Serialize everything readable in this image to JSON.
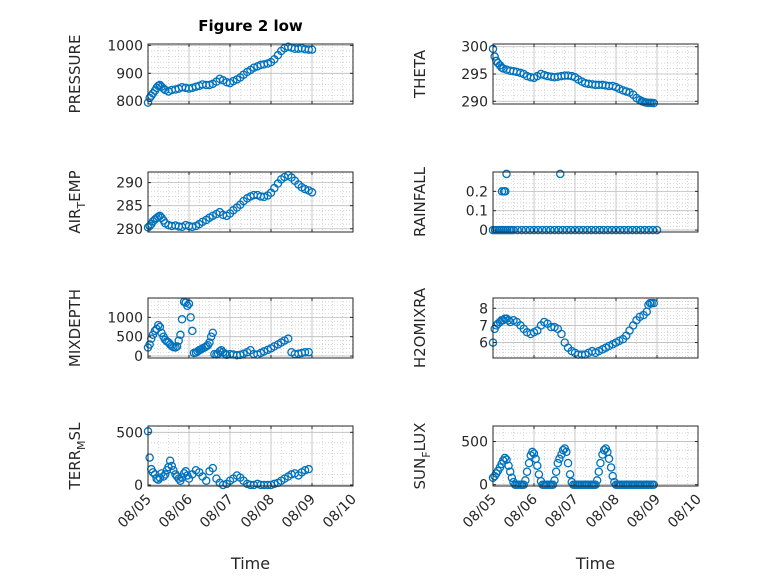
{
  "figure_title": "Figure 2 low",
  "colors": {
    "marker": "#0072BD",
    "axes": "#262626",
    "grid": "#bdbdbd",
    "background": "#ffffff"
  },
  "chart_data": [
    {
      "id": "pressure",
      "type": "scatter",
      "title": "Figure 2 low",
      "xlabel": "",
      "ylabel": "PRESSURE",
      "ylabel_sub": "",
      "ylabel_tail": "",
      "xlim": [
        0,
        5
      ],
      "ylim": [
        790,
        1005
      ],
      "xticks": [
        0,
        1,
        2,
        3,
        4,
        5
      ],
      "xtick_labels": [],
      "yticks": [
        800,
        900,
        1000
      ],
      "ytick_labels": [
        "800",
        "900",
        "1000"
      ],
      "grid": true,
      "x": [
        0.0,
        0.04,
        0.08,
        0.12,
        0.17,
        0.21,
        0.25,
        0.29,
        0.33,
        0.38,
        0.42,
        0.5,
        0.58,
        0.67,
        0.75,
        0.83,
        0.92,
        1.0,
        1.08,
        1.17,
        1.25,
        1.33,
        1.42,
        1.5,
        1.58,
        1.67,
        1.75,
        1.83,
        1.92,
        2.0,
        2.08,
        2.17,
        2.25,
        2.33,
        2.42,
        2.5,
        2.58,
        2.67,
        2.75,
        2.83,
        2.92,
        3.0,
        3.08,
        3.17,
        3.25,
        3.33,
        3.42,
        3.5,
        3.58,
        3.67,
        3.75,
        3.83,
        3.92,
        4.0
      ],
      "y": [
        795,
        812,
        820,
        828,
        838,
        848,
        855,
        858,
        852,
        845,
        840,
        835,
        840,
        842,
        845,
        850,
        848,
        845,
        848,
        852,
        855,
        860,
        858,
        858,
        862,
        870,
        880,
        875,
        868,
        865,
        872,
        878,
        885,
        895,
        905,
        912,
        920,
        925,
        930,
        932,
        935,
        940,
        950,
        965,
        980,
        990,
        995,
        992,
        988,
        988,
        990,
        986,
        985,
        985
      ]
    },
    {
      "id": "theta",
      "type": "scatter",
      "title": "",
      "xlabel": "",
      "ylabel": "THETA",
      "ylabel_sub": "",
      "ylabel_tail": "",
      "xlim": [
        0,
        5
      ],
      "ylim": [
        289.5,
        300.5
      ],
      "xticks": [
        0,
        1,
        2,
        3,
        4,
        5
      ],
      "xtick_labels": [],
      "yticks": [
        290,
        295,
        300
      ],
      "ytick_labels": [
        "290",
        "295",
        "300"
      ],
      "grid": true,
      "x": [
        0.0,
        0.04,
        0.08,
        0.12,
        0.17,
        0.21,
        0.25,
        0.33,
        0.42,
        0.5,
        0.58,
        0.67,
        0.75,
        0.83,
        0.92,
        1.0,
        1.08,
        1.17,
        1.25,
        1.33,
        1.42,
        1.5,
        1.58,
        1.67,
        1.75,
        1.83,
        1.92,
        2.0,
        2.08,
        2.17,
        2.25,
        2.33,
        2.42,
        2.5,
        2.58,
        2.67,
        2.75,
        2.83,
        2.92,
        3.0,
        3.08,
        3.17,
        3.25,
        3.33,
        3.42,
        3.5,
        3.58,
        3.63,
        3.67,
        3.71,
        3.75,
        3.79,
        3.83,
        3.87,
        3.92
      ],
      "y": [
        299.6,
        298.2,
        297.4,
        297.0,
        296.6,
        296.2,
        296.0,
        295.8,
        295.6,
        295.5,
        295.4,
        295.2,
        295.0,
        294.6,
        294.4,
        294.3,
        294.6,
        295.0,
        294.8,
        294.6,
        294.5,
        294.4,
        294.5,
        294.6,
        294.7,
        294.7,
        294.6,
        294.4,
        294.0,
        293.6,
        293.3,
        293.2,
        293.1,
        293.0,
        293.0,
        293.0,
        292.9,
        292.8,
        292.8,
        292.6,
        292.3,
        292.0,
        291.8,
        291.6,
        291.2,
        290.6,
        290.2,
        290.0,
        289.9,
        289.8,
        289.75,
        289.7,
        289.7,
        289.7,
        289.65
      ]
    },
    {
      "id": "air-temp",
      "type": "scatter",
      "title": "",
      "xlabel": "",
      "ylabel": "AIR",
      "ylabel_sub": "T",
      "ylabel_tail": "EMP",
      "xlim": [
        0,
        5
      ],
      "ylim": [
        279.3,
        292.3
      ],
      "xticks": [
        0,
        1,
        2,
        3,
        4,
        5
      ],
      "xtick_labels": [],
      "yticks": [
        280,
        285,
        290
      ],
      "ytick_labels": [
        "280",
        "285",
        "290"
      ],
      "grid": true,
      "x": [
        0.0,
        0.04,
        0.08,
        0.12,
        0.17,
        0.21,
        0.25,
        0.29,
        0.33,
        0.38,
        0.42,
        0.5,
        0.58,
        0.67,
        0.75,
        0.83,
        0.92,
        1.0,
        1.08,
        1.17,
        1.25,
        1.33,
        1.42,
        1.5,
        1.58,
        1.67,
        1.75,
        1.83,
        1.92,
        2.0,
        2.08,
        2.17,
        2.25,
        2.33,
        2.42,
        2.5,
        2.58,
        2.67,
        2.75,
        2.83,
        2.92,
        3.0,
        3.08,
        3.17,
        3.25,
        3.33,
        3.42,
        3.5,
        3.58,
        3.67,
        3.75,
        3.83,
        3.92,
        4.0
      ],
      "y": [
        280.3,
        280.6,
        281.0,
        281.6,
        282.0,
        282.3,
        282.6,
        282.8,
        282.4,
        281.8,
        281.2,
        280.8,
        280.6,
        280.7,
        280.5,
        280.4,
        280.8,
        280.6,
        280.4,
        280.6,
        281.0,
        281.5,
        281.9,
        282.4,
        282.8,
        283.2,
        283.6,
        283.0,
        282.8,
        283.3,
        284.0,
        284.6,
        285.2,
        286.0,
        286.6,
        287.0,
        287.3,
        287.3,
        287.0,
        286.9,
        287.2,
        287.8,
        288.8,
        289.8,
        290.7,
        291.2,
        291.6,
        291.1,
        290.4,
        289.6,
        289.0,
        288.6,
        288.3,
        287.9
      ]
    },
    {
      "id": "rainfall",
      "type": "scatter",
      "title": "",
      "xlabel": "",
      "ylabel": "RAINFALL",
      "ylabel_sub": "",
      "ylabel_tail": "",
      "xlim": [
        0,
        5
      ],
      "ylim": [
        -0.01,
        0.3
      ],
      "xticks": [
        0,
        1,
        2,
        3,
        4,
        5
      ],
      "xtick_labels": [],
      "yticks": [
        0,
        0.1,
        0.2
      ],
      "ytick_labels": [
        "0",
        "0.1",
        "0.2"
      ],
      "grid": true,
      "x": [
        0.0,
        0.05,
        0.1,
        0.15,
        0.2,
        0.25,
        0.3,
        0.35,
        0.4,
        0.45,
        0.5,
        0.6,
        0.7,
        0.8,
        0.9,
        1.0,
        1.1,
        1.2,
        1.3,
        1.4,
        1.5,
        1.6,
        1.7,
        1.8,
        1.9,
        2.0,
        2.1,
        2.2,
        2.3,
        2.4,
        2.5,
        2.6,
        2.7,
        2.8,
        2.9,
        3.0,
        3.1,
        3.2,
        3.3,
        3.4,
        3.5,
        3.6,
        3.7,
        3.8,
        3.9,
        4.0,
        0.22,
        0.27,
        0.3,
        0.33,
        1.64
      ],
      "y": [
        0,
        0,
        0,
        0,
        0,
        0,
        0,
        0,
        0,
        0,
        0,
        0,
        0,
        0,
        0,
        0,
        0,
        0,
        0,
        0,
        0,
        0,
        0,
        0,
        0,
        0,
        0,
        0,
        0,
        0,
        0,
        0,
        0,
        0,
        0,
        0,
        0,
        0,
        0,
        0,
        0,
        0,
        0,
        0,
        0,
        0,
        0.2,
        0.2,
        0.2,
        0.29,
        0.29
      ]
    },
    {
      "id": "mixdepth",
      "type": "scatter",
      "title": "",
      "xlabel": "",
      "ylabel": "MIXDEPTH",
      "ylabel_sub": "",
      "ylabel_tail": "",
      "xlim": [
        0,
        5
      ],
      "ylim": [
        -50,
        1500
      ],
      "xticks": [
        0,
        1,
        2,
        3,
        4,
        5
      ],
      "xtick_labels": [],
      "yticks": [
        0,
        500,
        1000
      ],
      "ytick_labels": [
        "0",
        "500",
        "1000"
      ],
      "grid": true,
      "x": [
        0.0,
        0.04,
        0.08,
        0.12,
        0.17,
        0.21,
        0.25,
        0.29,
        0.33,
        0.38,
        0.42,
        0.46,
        0.5,
        0.54,
        0.58,
        0.62,
        0.67,
        0.71,
        0.75,
        0.79,
        0.83,
        0.88,
        0.92,
        0.96,
        1.0,
        1.04,
        1.08,
        1.12,
        1.17,
        1.21,
        1.25,
        1.29,
        1.33,
        1.38,
        1.42,
        1.46,
        1.5,
        1.54,
        1.58,
        1.62,
        1.67,
        1.71,
        1.75,
        1.79,
        1.83,
        1.88,
        1.92,
        2.0,
        2.08,
        2.17,
        2.25,
        2.33,
        2.42,
        2.5,
        2.58,
        2.67,
        2.75,
        2.83,
        2.92,
        3.0,
        3.08,
        3.17,
        3.25,
        3.33,
        3.42,
        3.5,
        3.58,
        3.67,
        3.75,
        3.83,
        3.92
      ],
      "y": [
        220,
        300,
        450,
        550,
        650,
        700,
        800,
        750,
        600,
        500,
        420,
        380,
        350,
        300,
        260,
        230,
        220,
        250,
        400,
        550,
        950,
        1400,
        1380,
        1300,
        1350,
        1000,
        650,
        80,
        90,
        120,
        150,
        170,
        200,
        220,
        250,
        280,
        350,
        500,
        600,
        50,
        40,
        60,
        120,
        150,
        100,
        60,
        30,
        50,
        40,
        20,
        30,
        60,
        100,
        150,
        50,
        40,
        80,
        120,
        160,
        200,
        250,
        300,
        350,
        400,
        450,
        100,
        50,
        60,
        80,
        100,
        100
      ]
    },
    {
      "id": "h2omixra",
      "type": "scatter",
      "title": "",
      "xlabel": "",
      "ylabel": "H2OMIXRA",
      "ylabel_sub": "",
      "ylabel_tail": "",
      "xlim": [
        0,
        5
      ],
      "ylim": [
        5.1,
        8.6
      ],
      "xticks": [
        0,
        1,
        2,
        3,
        4,
        5
      ],
      "xtick_labels": [],
      "yticks": [
        6,
        7,
        8
      ],
      "ytick_labels": [
        "6",
        "7",
        "8"
      ],
      "grid": true,
      "x": [
        0.0,
        0.04,
        0.08,
        0.12,
        0.17,
        0.21,
        0.25,
        0.29,
        0.33,
        0.38,
        0.42,
        0.5,
        0.58,
        0.67,
        0.75,
        0.83,
        0.92,
        1.0,
        1.08,
        1.17,
        1.25,
        1.33,
        1.42,
        1.5,
        1.58,
        1.67,
        1.75,
        1.83,
        1.92,
        2.0,
        2.08,
        2.17,
        2.25,
        2.33,
        2.42,
        2.5,
        2.58,
        2.67,
        2.75,
        2.83,
        2.92,
        3.0,
        3.08,
        3.17,
        3.25,
        3.33,
        3.42,
        3.5,
        3.58,
        3.67,
        3.75,
        3.79,
        3.83,
        3.87,
        3.92
      ],
      "y": [
        6.0,
        6.8,
        7.0,
        7.1,
        7.2,
        7.3,
        7.3,
        7.4,
        7.4,
        7.3,
        7.2,
        7.3,
        7.2,
        7.0,
        6.8,
        6.6,
        6.5,
        6.6,
        6.7,
        7.0,
        7.2,
        7.1,
        6.9,
        6.9,
        6.8,
        6.5,
        6.0,
        5.7,
        5.5,
        5.4,
        5.3,
        5.3,
        5.3,
        5.4,
        5.5,
        5.4,
        5.5,
        5.6,
        5.7,
        5.8,
        5.9,
        6.0,
        6.1,
        6.2,
        6.4,
        6.7,
        7.0,
        7.3,
        7.5,
        7.6,
        7.8,
        8.2,
        8.3,
        8.3,
        8.3
      ]
    },
    {
      "id": "terr-msl",
      "type": "scatter",
      "title": "",
      "xlabel": "Time",
      "ylabel": "TERR",
      "ylabel_sub": "M",
      "ylabel_tail": "SL",
      "xlim": [
        0,
        5
      ],
      "ylim": [
        -10,
        560
      ],
      "xticks": [
        0,
        1,
        2,
        3,
        4,
        5
      ],
      "xtick_labels": [
        "08/05",
        "08/06",
        "08/07",
        "08/08",
        "08/09",
        "08/10"
      ],
      "yticks": [
        0,
        500
      ],
      "ytick_labels": [
        "0",
        "500"
      ],
      "grid": true,
      "x": [
        0.0,
        0.04,
        0.08,
        0.12,
        0.17,
        0.21,
        0.25,
        0.29,
        0.33,
        0.38,
        0.42,
        0.46,
        0.5,
        0.54,
        0.58,
        0.62,
        0.67,
        0.71,
        0.75,
        0.79,
        0.83,
        0.88,
        0.92,
        0.96,
        1.0,
        1.08,
        1.17,
        1.25,
        1.33,
        1.42,
        1.5,
        1.58,
        1.67,
        1.75,
        1.83,
        1.92,
        2.0,
        2.08,
        2.17,
        2.25,
        2.33,
        2.42,
        2.5,
        2.58,
        2.67,
        2.75,
        2.83,
        2.92,
        3.0,
        3.08,
        3.17,
        3.25,
        3.33,
        3.42,
        3.5,
        3.58,
        3.67,
        3.75,
        3.83,
        3.92
      ],
      "y": [
        510,
        260,
        150,
        120,
        100,
        60,
        50,
        70,
        110,
        80,
        100,
        140,
        170,
        230,
        180,
        140,
        100,
        80,
        60,
        40,
        70,
        110,
        130,
        90,
        60,
        100,
        140,
        120,
        80,
        40,
        130,
        160,
        60,
        20,
        0,
        10,
        40,
        60,
        90,
        70,
        40,
        10,
        0,
        0,
        10,
        0,
        0,
        0,
        0,
        10,
        20,
        40,
        60,
        80,
        100,
        110,
        90,
        120,
        140,
        150
      ]
    },
    {
      "id": "sun-flux",
      "type": "scatter",
      "title": "",
      "xlabel": "Time",
      "ylabel": "SUN",
      "ylabel_sub": "F",
      "ylabel_tail": "LUX",
      "xlim": [
        0,
        5
      ],
      "ylim": [
        -15,
        680
      ],
      "xticks": [
        0,
        1,
        2,
        3,
        4,
        5
      ],
      "xtick_labels": [
        "08/05",
        "08/06",
        "08/07",
        "08/08",
        "08/09",
        "08/10"
      ],
      "yticks": [
        0,
        500
      ],
      "ytick_labels": [
        "0",
        "500"
      ],
      "grid": true,
      "x": [
        0.0,
        0.04,
        0.08,
        0.12,
        0.17,
        0.21,
        0.25,
        0.29,
        0.33,
        0.38,
        0.42,
        0.46,
        0.5,
        0.54,
        0.58,
        0.62,
        0.67,
        0.71,
        0.75,
        0.79,
        0.83,
        0.88,
        0.92,
        0.96,
        1.0,
        1.04,
        1.08,
        1.12,
        1.17,
        1.21,
        1.25,
        1.29,
        1.33,
        1.38,
        1.42,
        1.46,
        1.5,
        1.54,
        1.58,
        1.62,
        1.67,
        1.71,
        1.75,
        1.79,
        1.83,
        1.88,
        1.92,
        1.96,
        2.0,
        2.04,
        2.08,
        2.12,
        2.17,
        2.21,
        2.25,
        2.29,
        2.33,
        2.38,
        2.42,
        2.46,
        2.5,
        2.54,
        2.58,
        2.62,
        2.67,
        2.71,
        2.75,
        2.79,
        2.83,
        2.88,
        2.92,
        2.96,
        3.0,
        3.04,
        3.08,
        3.12,
        3.17,
        3.21,
        3.25,
        3.29,
        3.33,
        3.38,
        3.42,
        3.46,
        3.5,
        3.54,
        3.58,
        3.62,
        3.67,
        3.71,
        3.75,
        3.79,
        3.83,
        3.88,
        3.92
      ],
      "y": [
        80,
        100,
        130,
        160,
        200,
        240,
        280,
        310,
        290,
        220,
        150,
        80,
        30,
        0,
        0,
        0,
        0,
        0,
        0,
        50,
        150,
        250,
        340,
        380,
        360,
        300,
        220,
        120,
        40,
        0,
        0,
        0,
        0,
        0,
        0,
        0,
        50,
        150,
        250,
        300,
        350,
        400,
        420,
        380,
        250,
        120,
        30,
        0,
        0,
        0,
        0,
        0,
        0,
        0,
        0,
        0,
        0,
        0,
        0,
        0,
        0,
        50,
        150,
        250,
        350,
        400,
        420,
        380,
        300,
        200,
        100,
        30,
        0,
        0,
        0,
        0,
        0,
        0,
        0,
        0,
        0,
        0,
        0,
        0,
        0,
        0,
        0,
        0,
        0,
        0,
        0,
        0,
        0,
        0,
        0
      ]
    }
  ]
}
